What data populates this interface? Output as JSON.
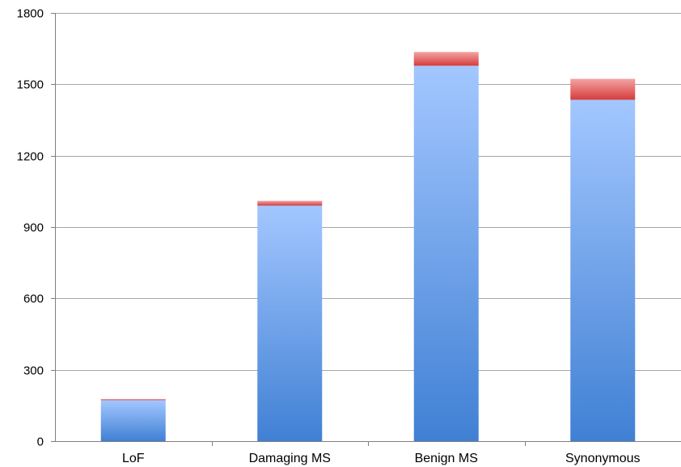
{
  "chart_data": {
    "type": "bar",
    "stacked": true,
    "categories": [
      "LoF",
      "Damaging MS",
      "Benign MS",
      "Synonymous"
    ],
    "series": [
      {
        "values": [
          172,
          990,
          1578,
          1435
        ],
        "color": "#7fa9ea"
      },
      {
        "values": [
          5,
          20,
          58,
          88
        ],
        "color": "#e0575a"
      }
    ],
    "ylim": [
      0,
      1800
    ],
    "yticks": [
      0,
      300,
      600,
      900,
      1200,
      1500,
      1800
    ],
    "ytick_labels": [
      "0",
      "300",
      "600",
      "900",
      "1200",
      "1500",
      "1800"
    ],
    "grid": true,
    "legend": "none",
    "title": "",
    "xlabel": "",
    "ylabel": ""
  }
}
